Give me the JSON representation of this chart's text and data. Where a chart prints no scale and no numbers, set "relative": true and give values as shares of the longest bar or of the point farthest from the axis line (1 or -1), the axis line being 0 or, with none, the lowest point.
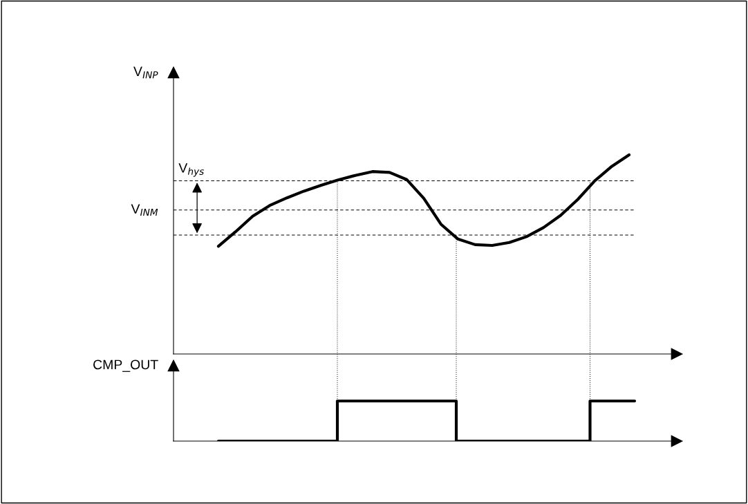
{
  "chart_data": [
    {
      "type": "line",
      "relative": true,
      "ylabel": "V$_{INP}$",
      "marker": "none",
      "line_style": "solid",
      "categories": [
        null,
        null,
        null,
        null,
        null,
        null,
        null,
        null,
        null,
        null,
        null,
        null,
        null,
        null,
        null,
        null,
        null,
        null,
        null,
        null,
        null,
        null,
        null,
        null,
        null
      ],
      "series": [
        {
          "color": "#000000",
          "values": [
            0.541,
            0.614,
            0.692,
            0.746,
            0.784,
            0.818,
            0.847,
            0.874,
            0.897,
            0.916,
            0.912,
            0.876,
            0.782,
            0.652,
            0.577,
            0.549,
            0.545,
            0.56,
            0.589,
            0.635,
            0.696,
            0.776,
            0.87,
            0.943,
            1.0
          ]
        }
      ],
      "ref_lines": [
        {
          "axis": "y",
          "value": 0.87,
          "label": "V$_{hys}$",
          "line_style": "dashed",
          "color": "#000000"
        },
        {
          "axis": "y",
          "value": 0.723,
          "label": "V$_{INM}$",
          "line_style": "dashed",
          "color": "#000000"
        },
        {
          "axis": "y",
          "value": 0.597,
          "label": null,
          "line_style": "dashed",
          "color": "#000000"
        }
      ]
    },
    {
      "type": "step",
      "relative": true,
      "ylabel": "CMP_OUT",
      "marker": "none",
      "line_style": "solid",
      "categories": [
        null,
        null,
        null,
        null,
        null,
        null,
        null,
        null,
        null,
        null,
        null,
        null,
        null,
        null,
        null,
        null,
        null,
        null,
        null,
        null,
        null,
        null,
        null,
        null,
        null,
        null,
        null,
        null,
        null
      ],
      "series": [
        {
          "color": "#000000",
          "values": [
            0,
            0,
            0,
            0,
            0,
            0,
            0,
            0,
            1,
            1,
            1,
            1,
            1,
            1,
            1,
            1,
            0,
            0,
            0,
            0,
            0,
            0,
            0,
            0,
            0,
            1,
            1,
            1,
            1
          ]
        }
      ]
    }
  ]
}
